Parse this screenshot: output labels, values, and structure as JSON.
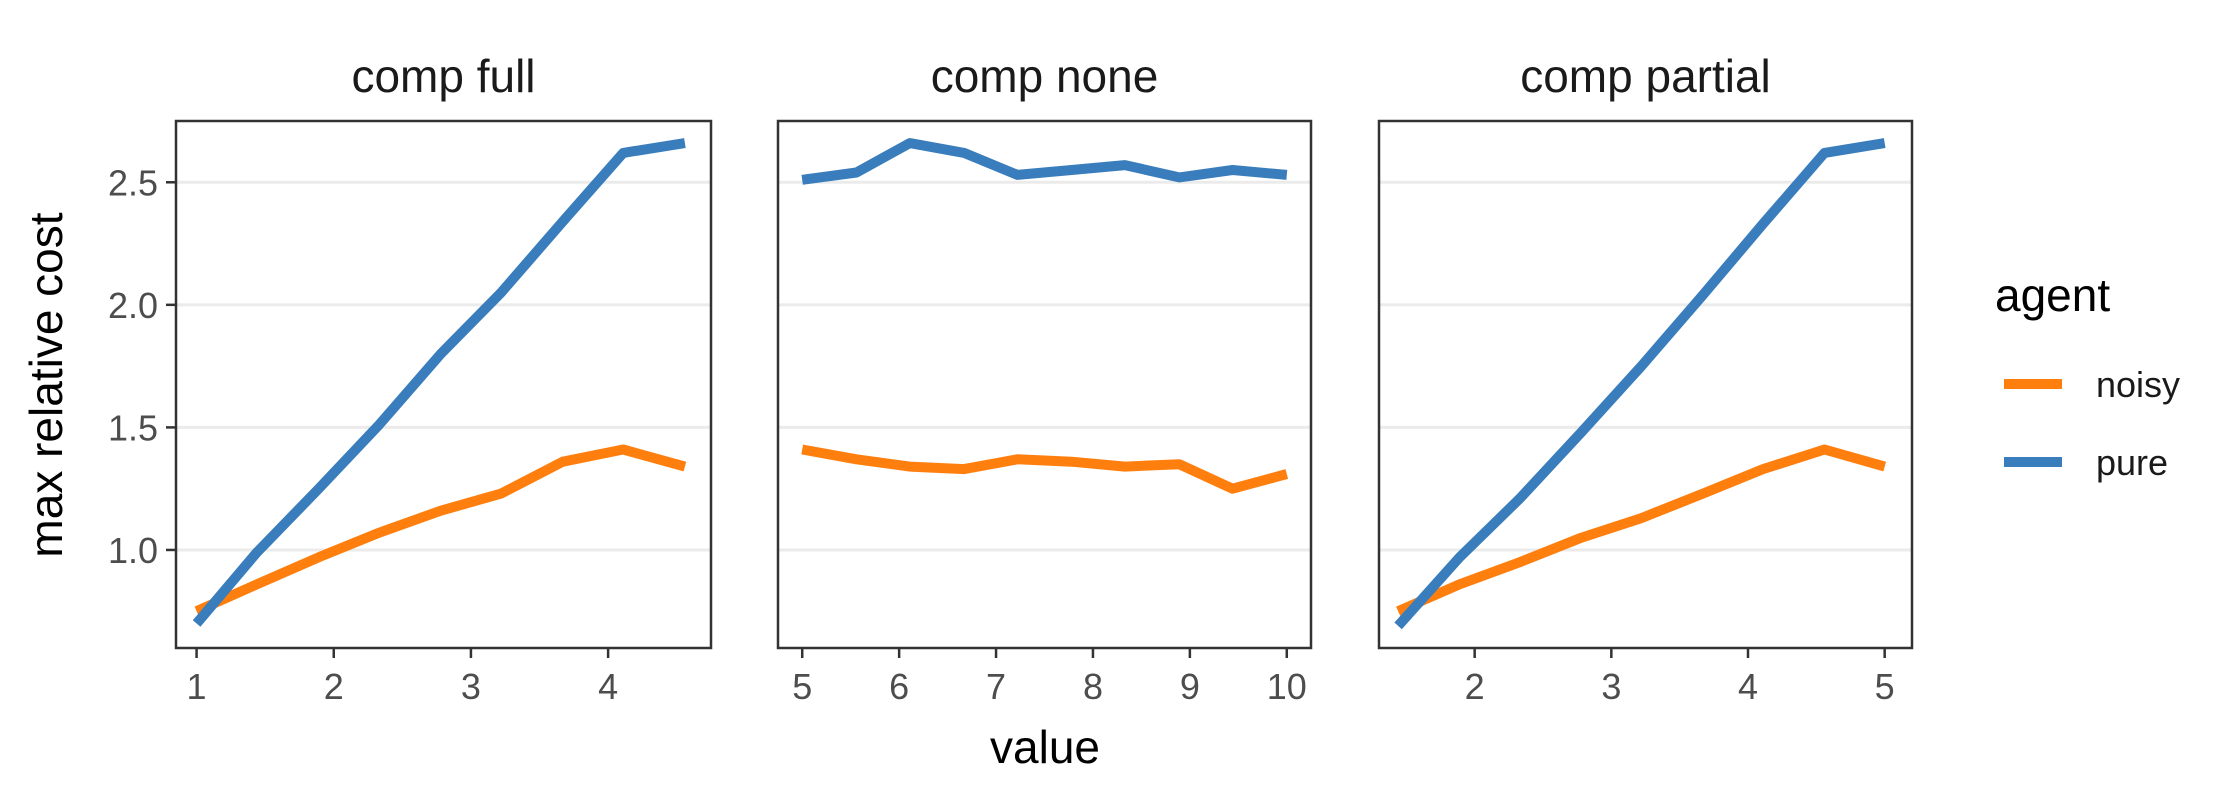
{
  "chart_data": {
    "type": "line",
    "facet_variable": "comp",
    "ylabel": "max relative cost",
    "xlabel": "value",
    "y_ticks": [
      "1.0",
      "1.5",
      "2.0",
      "2.5"
    ],
    "ylim": [
      0.6,
      2.75
    ],
    "grid": "horizontal major gridlines",
    "legend": {
      "title": "agent",
      "position": "right",
      "entries": [
        {
          "name": "noisy",
          "color": "#ff7f0e"
        },
        {
          "name": "pure",
          "color": "#3a7dbc"
        }
      ]
    },
    "colors": {
      "noisy": "#ff7f0e",
      "pure": "#3a7dbc",
      "grid": "#ebebeb",
      "border": "#333333"
    },
    "panels": [
      {
        "title": "comp full",
        "xlim": [
          0.85,
          4.75
        ],
        "x_ticks": [
          "1",
          "2",
          "3",
          "4"
        ],
        "series": [
          {
            "name": "noisy",
            "x": [
              1.0,
              1.44,
              1.89,
              2.33,
              2.78,
              3.22,
              3.67,
              4.11,
              4.56
            ],
            "y": [
              0.75,
              0.86,
              0.97,
              1.07,
              1.16,
              1.23,
              1.36,
              1.41,
              1.34
            ]
          },
          {
            "name": "pure",
            "x": [
              1.0,
              1.44,
              1.89,
              2.33,
              2.78,
              3.22,
              3.67,
              4.11,
              4.56
            ],
            "y": [
              0.7,
              0.99,
              1.25,
              1.51,
              1.8,
              2.05,
              2.34,
              2.62,
              2.66
            ]
          }
        ]
      },
      {
        "title": "comp none",
        "xlim": [
          4.75,
          10.25
        ],
        "x_ticks": [
          "5",
          "6",
          "7",
          "8",
          "9",
          "10"
        ],
        "series": [
          {
            "name": "noisy",
            "x": [
              5.0,
              5.56,
              6.11,
              6.67,
              7.22,
              7.78,
              8.33,
              8.89,
              9.44,
              10.0
            ],
            "y": [
              1.41,
              1.37,
              1.34,
              1.33,
              1.37,
              1.36,
              1.34,
              1.35,
              1.25,
              1.31
            ]
          },
          {
            "name": "pure",
            "x": [
              5.0,
              5.56,
              6.11,
              6.67,
              7.22,
              7.78,
              8.33,
              8.89,
              9.44,
              10.0
            ],
            "y": [
              2.51,
              2.54,
              2.66,
              2.62,
              2.53,
              2.55,
              2.57,
              2.52,
              2.55,
              2.53
            ]
          }
        ]
      },
      {
        "title": "comp partial",
        "xlim": [
          1.3,
          5.2
        ],
        "x_ticks": [
          "2",
          "3",
          "4",
          "5"
        ],
        "series": [
          {
            "name": "noisy",
            "x": [
              1.44,
              1.89,
              2.33,
              2.78,
              3.22,
              3.67,
              4.11,
              4.56,
              5.0
            ],
            "y": [
              0.75,
              0.86,
              0.95,
              1.05,
              1.13,
              1.23,
              1.33,
              1.41,
              1.34
            ]
          },
          {
            "name": "pure",
            "x": [
              1.44,
              1.89,
              2.33,
              2.78,
              3.22,
              3.67,
              4.11,
              4.56,
              5.0
            ],
            "y": [
              0.69,
              0.97,
              1.21,
              1.48,
              1.75,
              2.04,
              2.33,
              2.62,
              2.66
            ]
          }
        ]
      }
    ]
  }
}
